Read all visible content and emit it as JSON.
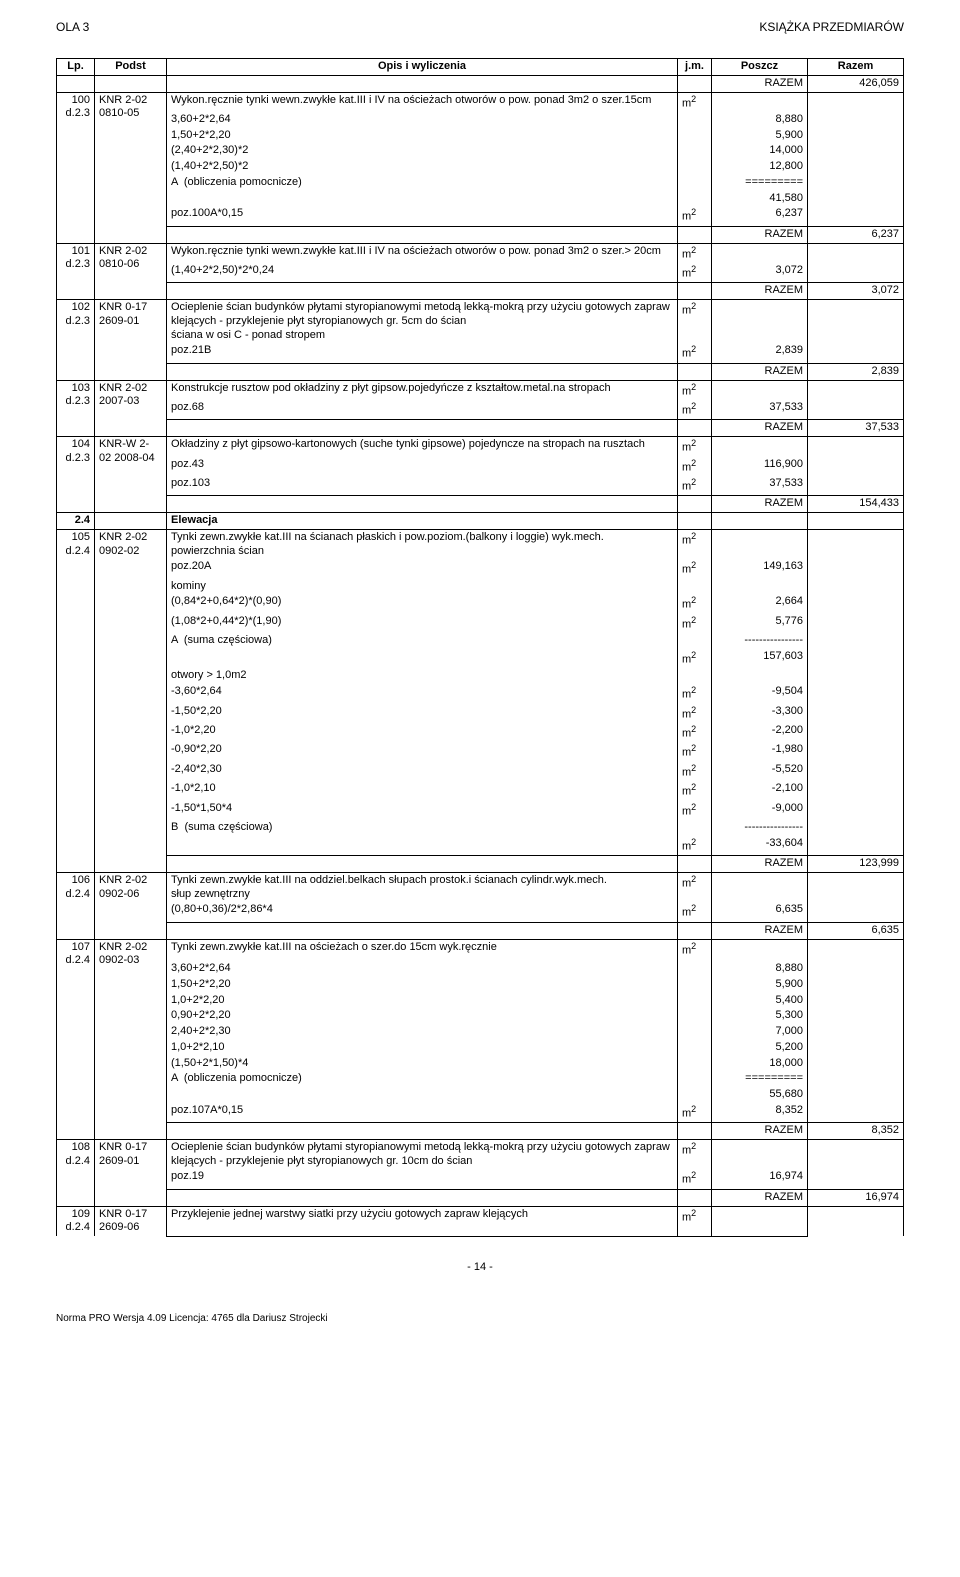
{
  "header": {
    "left": "OLA 3",
    "right": "KSIĄŻKA PRZEDMIARÓW"
  },
  "columns": {
    "lp": "Lp.",
    "podst": "Podst",
    "opis": "Opis i wyliczenia",
    "jm": "j.m.",
    "poszcz": "Poszcz",
    "razem": "Razem"
  },
  "razem_word": "RAZEM",
  "unit_m2": "m2",
  "initial_razem": "426,059",
  "section_row": {
    "code": "2.4",
    "text": "Elewacja"
  },
  "footer": {
    "page": "- 14 -",
    "app": "Norma PRO Wersja 4.09 Licencja: 4765 dla Dariusz Strojecki"
  },
  "items": [
    {
      "lp": "100",
      "podst_top": "KNR 2-02",
      "podst_bot": "d.2.3 0810-05",
      "desc": "Wykon.ręcznie tynki wewn.zwykłe kat.III i IV na ościeżach otworów o pow. ponad 3m2 o szer.15cm",
      "jm": "m2",
      "calc": [
        {
          "o": "3,60+2*2,64",
          "v": "8,880"
        },
        {
          "o": "1,50+2*2,20",
          "v": "5,900"
        },
        {
          "o": "(2,40+2*2,30)*2",
          "v": "14,000"
        },
        {
          "o": "(1,40+2*2,50)*2",
          "v": "12,800"
        },
        {
          "o": "A  (obliczenia pomocnicze)",
          "v": "========="
        },
        {
          "o": "",
          "v": "41,580"
        },
        {
          "o": "poz.100A*0,15",
          "jm": "m2",
          "v": "6,237"
        }
      ],
      "razem": "6,237"
    },
    {
      "lp": "101",
      "podst_top": "KNR 2-02",
      "podst_bot": "d.2.3 0810-06",
      "desc": "Wykon.ręcznie tynki wewn.zwykłe kat.III i IV na ościeżach otworów o pow. ponad 3m2 o szer.> 20cm",
      "jm": "m2",
      "calc": [
        {
          "o": "(1,40+2*2,50)*2*0,24",
          "jm": "m2",
          "v": "3,072"
        }
      ],
      "razem": "3,072"
    },
    {
      "lp": "102",
      "podst_top": "KNR 0-17",
      "podst_bot": "d.2.3 2609-01",
      "desc": "Ocieplenie ścian budynków płytami styropianowymi metodą lekką-mokrą przy użyciu gotowych zapraw klejących - przyklejenie płyt styropianowych gr. 5cm do ścian\nściana w osi C - ponad stropem",
      "jm": "m2",
      "calc": [
        {
          "o": "poz.21B",
          "jm": "m2",
          "v": "2,839"
        }
      ],
      "razem": "2,839"
    },
    {
      "lp": "103",
      "podst_top": "KNR 2-02",
      "podst_bot": "d.2.3 2007-03",
      "desc": "Konstrukcje rusztow pod okładziny z płyt gipsow.pojedyńcze z kształtow.metal.na stropach",
      "jm": "m2",
      "calc": [
        {
          "o": "poz.68",
          "jm": "m2",
          "v": "37,533"
        }
      ],
      "razem": "37,533"
    },
    {
      "lp": "104",
      "podst_top": "KNR-W 2-",
      "podst_bot": "d.2.3 02 2008-04",
      "desc": "Okładziny z płyt gipsowo-kartonowych (suche tynki gipsowe) pojedyncze na stropach na rusztach",
      "jm": "m2",
      "calc": [
        {
          "o": "poz.43",
          "jm": "m2",
          "v": "116,900"
        },
        {
          "o": "poz.103",
          "jm": "m2",
          "v": "37,533"
        }
      ],
      "razem": "154,433"
    },
    {
      "lp": "105",
      "podst_top": "KNR 2-02",
      "podst_bot": "d.2.4 0902-02",
      "desc": "Tynki zewn.zwykłe kat.III na ścianach płaskich i pow.poziom.(balkony i loggie) wyk.mech.\npowierzchnia ścian",
      "jm": "m2",
      "calc": [
        {
          "o": "poz.20A",
          "jm": "m2",
          "v": "149,163"
        },
        {
          "o": "kominy",
          "v": ""
        },
        {
          "o": "(0,84*2+0,64*2)*(0,90)",
          "jm": "m2",
          "v": "2,664"
        },
        {
          "o": "(1,08*2+0,44*2)*(1,90)",
          "jm": "m2",
          "v": "5,776"
        },
        {
          "o": "A  (suma częściowa)",
          "v": "----------------"
        },
        {
          "o": "",
          "jm": "m2",
          "v": "157,603"
        },
        {
          "o": "otwory > 1,0m2",
          "v": ""
        },
        {
          "o": "-3,60*2,64",
          "jm": "m2",
          "v": "-9,504"
        },
        {
          "o": "-1,50*2,20",
          "jm": "m2",
          "v": "-3,300"
        },
        {
          "o": "-1,0*2,20",
          "jm": "m2",
          "v": "-2,200"
        },
        {
          "o": "-0,90*2,20",
          "jm": "m2",
          "v": "-1,980"
        },
        {
          "o": "-2,40*2,30",
          "jm": "m2",
          "v": "-5,520"
        },
        {
          "o": "-1,0*2,10",
          "jm": "m2",
          "v": "-2,100"
        },
        {
          "o": "-1,50*1,50*4",
          "jm": "m2",
          "v": "-9,000"
        },
        {
          "o": "B  (suma częściowa)",
          "v": "----------------"
        },
        {
          "o": "",
          "jm": "m2",
          "v": "-33,604"
        }
      ],
      "razem": "123,999"
    },
    {
      "lp": "106",
      "podst_top": "KNR 2-02",
      "podst_bot": "d.2.4 0902-06",
      "desc": "Tynki zewn.zwykłe kat.III na oddziel.belkach słupach prostok.i ścianach cylindr.wyk.mech.\nsłup zewnętrzny",
      "jm": "m2",
      "calc": [
        {
          "o": "(0,80+0,36)/2*2,86*4",
          "jm": "m2",
          "v": "6,635"
        }
      ],
      "razem": "6,635"
    },
    {
      "lp": "107",
      "podst_top": "KNR 2-02",
      "podst_bot": "d.2.4 0902-03",
      "desc": "Tynki zewn.zwykłe kat.III na ościeżach o szer.do 15cm wyk.ręcznie",
      "jm": "m2",
      "calc": [
        {
          "o": "",
          "v": ""
        },
        {
          "o": "3,60+2*2,64",
          "v": "8,880"
        },
        {
          "o": "1,50+2*2,20",
          "v": "5,900"
        },
        {
          "o": "1,0+2*2,20",
          "v": "5,400"
        },
        {
          "o": "0,90+2*2,20",
          "v": "5,300"
        },
        {
          "o": "2,40+2*2,30",
          "v": "7,000"
        },
        {
          "o": "1,0+2*2,10",
          "v": "5,200"
        },
        {
          "o": "(1,50+2*1,50)*4",
          "v": "18,000"
        },
        {
          "o": "A  (obliczenia pomocnicze)",
          "v": "========="
        },
        {
          "o": "",
          "v": "55,680"
        },
        {
          "o": "poz.107A*0,15",
          "jm": "m2",
          "v": "8,352"
        }
      ],
      "razem": "8,352"
    },
    {
      "lp": "108",
      "podst_top": "KNR 0-17",
      "podst_bot": "d.2.4 2609-01",
      "desc": "Ocieplenie ścian budynków płytami styropianowymi metodą lekką-mokrą przy użyciu gotowych zapraw klejących - przyklejenie płyt styropianowych gr. 10cm do ścian",
      "jm": "m2",
      "calc": [
        {
          "o": "poz.19",
          "jm": "m2",
          "v": "16,974"
        }
      ],
      "razem": "16,974"
    },
    {
      "lp": "109",
      "podst_top": "KNR 0-17",
      "podst_bot": "d.2.4 2609-06",
      "desc": "Przyklejenie jednej warstwy siatki przy użyciu gotowych zapraw klejących",
      "jm": "m2",
      "calc": [],
      "razem": null
    }
  ]
}
